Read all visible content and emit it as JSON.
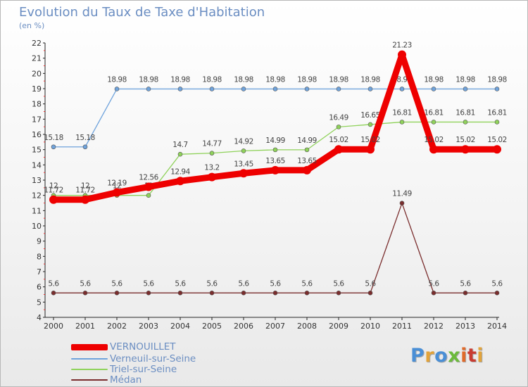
{
  "title": "Evolution du Taux de Taxe d'Habitation",
  "unit": "(en %)",
  "logo": {
    "text": "Proxiti",
    "letter_colors": [
      "#4a8fd6",
      "#e2a33a",
      "#4a8fd6",
      "#6cba3c",
      "#e06a2b",
      "#c93c32",
      "#e2a33a"
    ]
  },
  "chart_data": {
    "type": "line",
    "title": "Evolution du Taux de Taxe d'Habitation",
    "ylabel": "(en %)",
    "xlabel": "",
    "x": [
      "2000",
      "2001",
      "2002",
      "2003",
      "2004",
      "2005",
      "2006",
      "2007",
      "2008",
      "2009",
      "2010",
      "2011",
      "2012",
      "2013",
      "2014"
    ],
    "ylim": [
      4,
      22
    ],
    "yticks": [
      4,
      5,
      6,
      7,
      8,
      9,
      10,
      11,
      12,
      13,
      14,
      15,
      16,
      17,
      18,
      19,
      20,
      21,
      22
    ],
    "grid": false,
    "legend_placement": "bottom-left",
    "series": [
      {
        "name": "Médan",
        "color": "#7a2d2d",
        "values": [
          5.6,
          5.6,
          5.6,
          5.6,
          5.6,
          5.6,
          5.6,
          5.6,
          5.6,
          5.6,
          5.6,
          11.49,
          5.6,
          5.6,
          5.6
        ],
        "labels": [
          "5.6",
          "5.6",
          "5.6",
          "5.6",
          "5.6",
          "5.6",
          "5.6",
          "5.6",
          "5.6",
          "5.6",
          "5.6",
          "11.49",
          "5.6",
          "5.6",
          "5.6"
        ]
      },
      {
        "name": "Triel-sur-Seine",
        "color": "#8fd25a",
        "values": [
          12,
          12,
          12,
          12,
          14.7,
          14.77,
          14.92,
          14.99,
          14.99,
          16.49,
          16.65,
          16.81,
          16.81,
          16.81,
          16.81
        ],
        "labels": [
          "12",
          "12",
          "12",
          "12",
          "14.7",
          "14.77",
          "14.92",
          "14.99",
          "14.99",
          "16.49",
          "16.65",
          "16.81",
          "16.81",
          "16.81",
          "16.81"
        ]
      },
      {
        "name": "Verneuil-sur-Seine",
        "color": "#6fa3dc",
        "values": [
          15.18,
          15.18,
          18.98,
          18.98,
          18.98,
          18.98,
          18.98,
          18.98,
          18.98,
          18.98,
          18.98,
          18.98,
          18.98,
          18.98,
          18.98
        ],
        "labels": [
          "15.18",
          "15.18",
          "18.98",
          "18.98",
          "18.98",
          "18.98",
          "18.98",
          "18.98",
          "18.98",
          "18.98",
          "18.98",
          "18.98",
          "18.98",
          "18.98",
          "18.98"
        ]
      },
      {
        "name": "VERNOUILLET",
        "color": "#ee0000",
        "values": [
          11.72,
          11.72,
          12.19,
          12.56,
          12.94,
          13.2,
          13.45,
          13.65,
          13.65,
          15.02,
          15.02,
          21.23,
          15.02,
          15.02,
          15.02
        ],
        "labels": [
          "11.72",
          "11.72",
          "12.19",
          "12.56",
          "12.94",
          "13.2",
          "13.45",
          "13.65",
          "13.65",
          "15.02",
          "15.02",
          "21.23",
          "15.02",
          "15.02",
          "15.02"
        ]
      }
    ]
  }
}
